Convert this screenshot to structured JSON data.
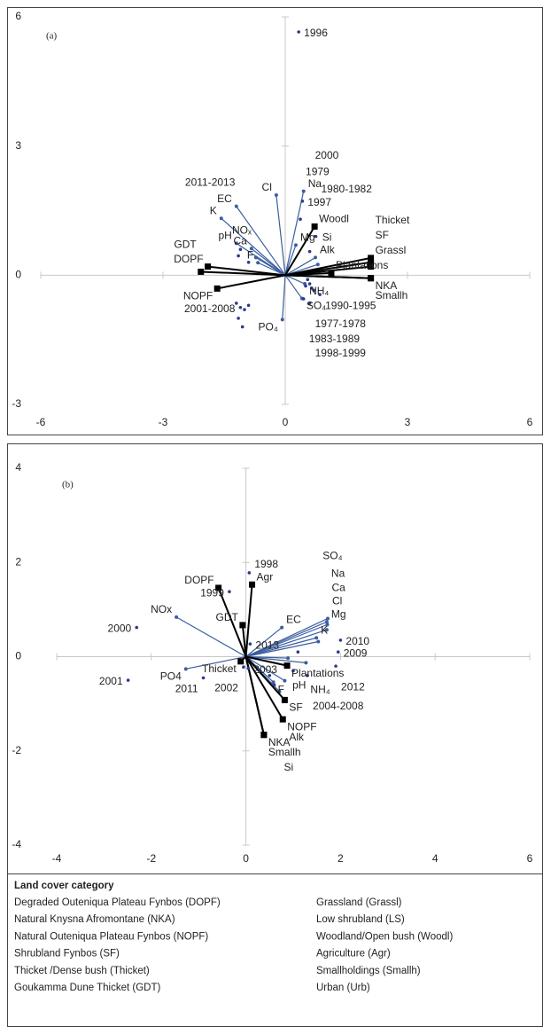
{
  "chart_data": [
    {
      "type": "biplot",
      "panel_label": "(a)",
      "xlim": [
        -6,
        6
      ],
      "xticks": [
        -6,
        -3,
        0,
        3,
        6
      ],
      "ylim": [
        -3,
        6
      ],
      "yticks": [
        -3,
        0,
        3,
        6
      ],
      "variable_vectors": {
        "color": "#3a5fa0",
        "names": [
          "Na",
          "Cl",
          "EC",
          "K",
          "pH",
          "Ca",
          "NOₓ",
          "F",
          "Mg",
          "Alk",
          "Si",
          "NH₄",
          "SO₄",
          "PO₄"
        ],
        "x": [
          0.45,
          -0.22,
          -1.2,
          -1.57,
          -1.2,
          -0.83,
          -0.72,
          -0.67,
          0.26,
          0.74,
          0.8,
          0.48,
          0.41,
          -0.07
        ],
        "y": [
          1.95,
          1.86,
          1.6,
          1.32,
          0.74,
          0.62,
          0.41,
          0.29,
          0.7,
          0.41,
          0.25,
          -0.2,
          -0.54,
          -1.03
        ]
      },
      "land_cover_vectors": {
        "color": "#000000",
        "names": [
          "Woodl",
          "Grassl",
          "SF",
          "Plantations",
          "Thicket",
          "NKA",
          "Smallh",
          "DOPF",
          "GDT",
          "NOPF"
        ],
        "x": [
          0.72,
          2.1,
          2.1,
          1.13,
          2.1,
          2.1,
          2.1,
          -1.9,
          -2.07,
          -1.67
        ],
        "y": [
          1.13,
          0.4,
          0.3,
          0.05,
          0.2,
          -0.07,
          -0.07,
          0.2,
          0.08,
          -0.31
        ]
      },
      "points": {
        "color": "#2b3a8f",
        "labels": [
          "1996",
          "1997",
          "1979",
          "1980-1982",
          "2000",
          "2011-2013",
          null,
          null,
          "2001-2008",
          null,
          null,
          null,
          null,
          null,
          "1977-1978",
          null,
          null,
          null,
          null,
          "1983-1989",
          "1990-1995",
          "1998-1999"
        ],
        "x": [
          0.33,
          0.42,
          0.37,
          0.75,
          0.6,
          -1.1,
          -1.15,
          -0.9,
          -1.1,
          -1.2,
          -1.0,
          -1.15,
          -1.05,
          -0.9,
          0.6,
          0.5,
          0.55,
          0.65,
          0.7,
          0.45,
          0.85,
          0.6
        ],
        "y": [
          5.65,
          1.72,
          1.3,
          0.9,
          0.55,
          0.6,
          0.45,
          0.3,
          -0.75,
          -0.65,
          -0.8,
          -1.0,
          -1.2,
          -0.7,
          -0.2,
          -0.25,
          -0.1,
          -0.3,
          -0.35,
          -0.55,
          -0.45,
          -0.65
        ]
      }
    },
    {
      "type": "biplot",
      "panel_label": "(b)",
      "xlim": [
        -4,
        6
      ],
      "xticks": [
        -4,
        -2,
        0,
        2,
        4,
        6
      ],
      "ylim": [
        -4,
        4
      ],
      "yticks": [
        -4,
        -2,
        0,
        2,
        4
      ],
      "variable_vectors": {
        "color": "#3a5fa0",
        "names": [
          "NOx",
          "PO4",
          "EC",
          "Mg",
          "Cl",
          "Ca",
          "Na",
          "K",
          "SO₄",
          "pH",
          "NH₄",
          "F",
          "Alk",
          "Si"
        ],
        "x": [
          -1.47,
          -1.27,
          0.76,
          1.71,
          1.73,
          1.72,
          1.71,
          1.49,
          1.53,
          0.89,
          1.27,
          0.58,
          0.82,
          0.71
        ],
        "y": [
          0.84,
          -0.26,
          0.62,
          0.74,
          0.81,
          0.68,
          0.57,
          0.4,
          0.32,
          -0.03,
          -0.13,
          -0.54,
          -0.51,
          -0.74
        ]
      },
      "land_cover_vectors": {
        "color": "#000000",
        "names": [
          "DOPF",
          "Agr",
          "GDT",
          "Thicket",
          "Plantations",
          "SF",
          "NOPF",
          "NKA",
          "Smallh"
        ],
        "x": [
          -0.58,
          0.13,
          -0.07,
          -0.11,
          0.87,
          0.82,
          0.78,
          0.38,
          0.38
        ],
        "y": [
          1.46,
          1.53,
          0.67,
          -0.1,
          -0.19,
          -0.92,
          -1.33,
          -1.66,
          -1.66
        ]
      },
      "points": {
        "color": "#2b3a8f",
        "labels": [
          "2000",
          "1999",
          "1998",
          "2013",
          "2010",
          "2009",
          "2012",
          "2004-2008",
          "2001",
          "2011",
          "2002",
          "2003",
          null,
          null,
          null,
          null,
          null
        ],
        "x": [
          -2.31,
          -0.35,
          0.07,
          0.09,
          2.0,
          1.95,
          1.9,
          1.3,
          -2.49,
          -0.9,
          -0.05,
          0.05,
          0.3,
          0.5,
          0.6,
          1.0,
          1.1
        ],
        "y": [
          0.62,
          1.38,
          1.78,
          0.27,
          0.35,
          0.1,
          -0.2,
          -0.4,
          -0.5,
          -0.45,
          -0.22,
          -0.25,
          -0.3,
          -0.4,
          -0.6,
          -0.3,
          0.1
        ]
      }
    }
  ],
  "land_cover_legend": {
    "title": "Land cover category",
    "left": [
      "Degraded Outeniqua Plateau Fynbos (DOPF)",
      "Natural Knysna Afromontane (NKA)",
      "Natural Outeniqua Plateau Fynbos (NOPF)",
      "Shrubland Fynbos (SF)",
      "Thicket /Dense bush (Thicket)",
      "Goukamma Dune Thicket (GDT)"
    ],
    "right": [
      "Grassland (Grassl)",
      "Low shrubland (LS)",
      "Woodland/Open bush (Woodl)",
      "Agriculture (Agr)",
      "Smallholdings (Smallh)",
      "Urban (Urb)"
    ]
  }
}
